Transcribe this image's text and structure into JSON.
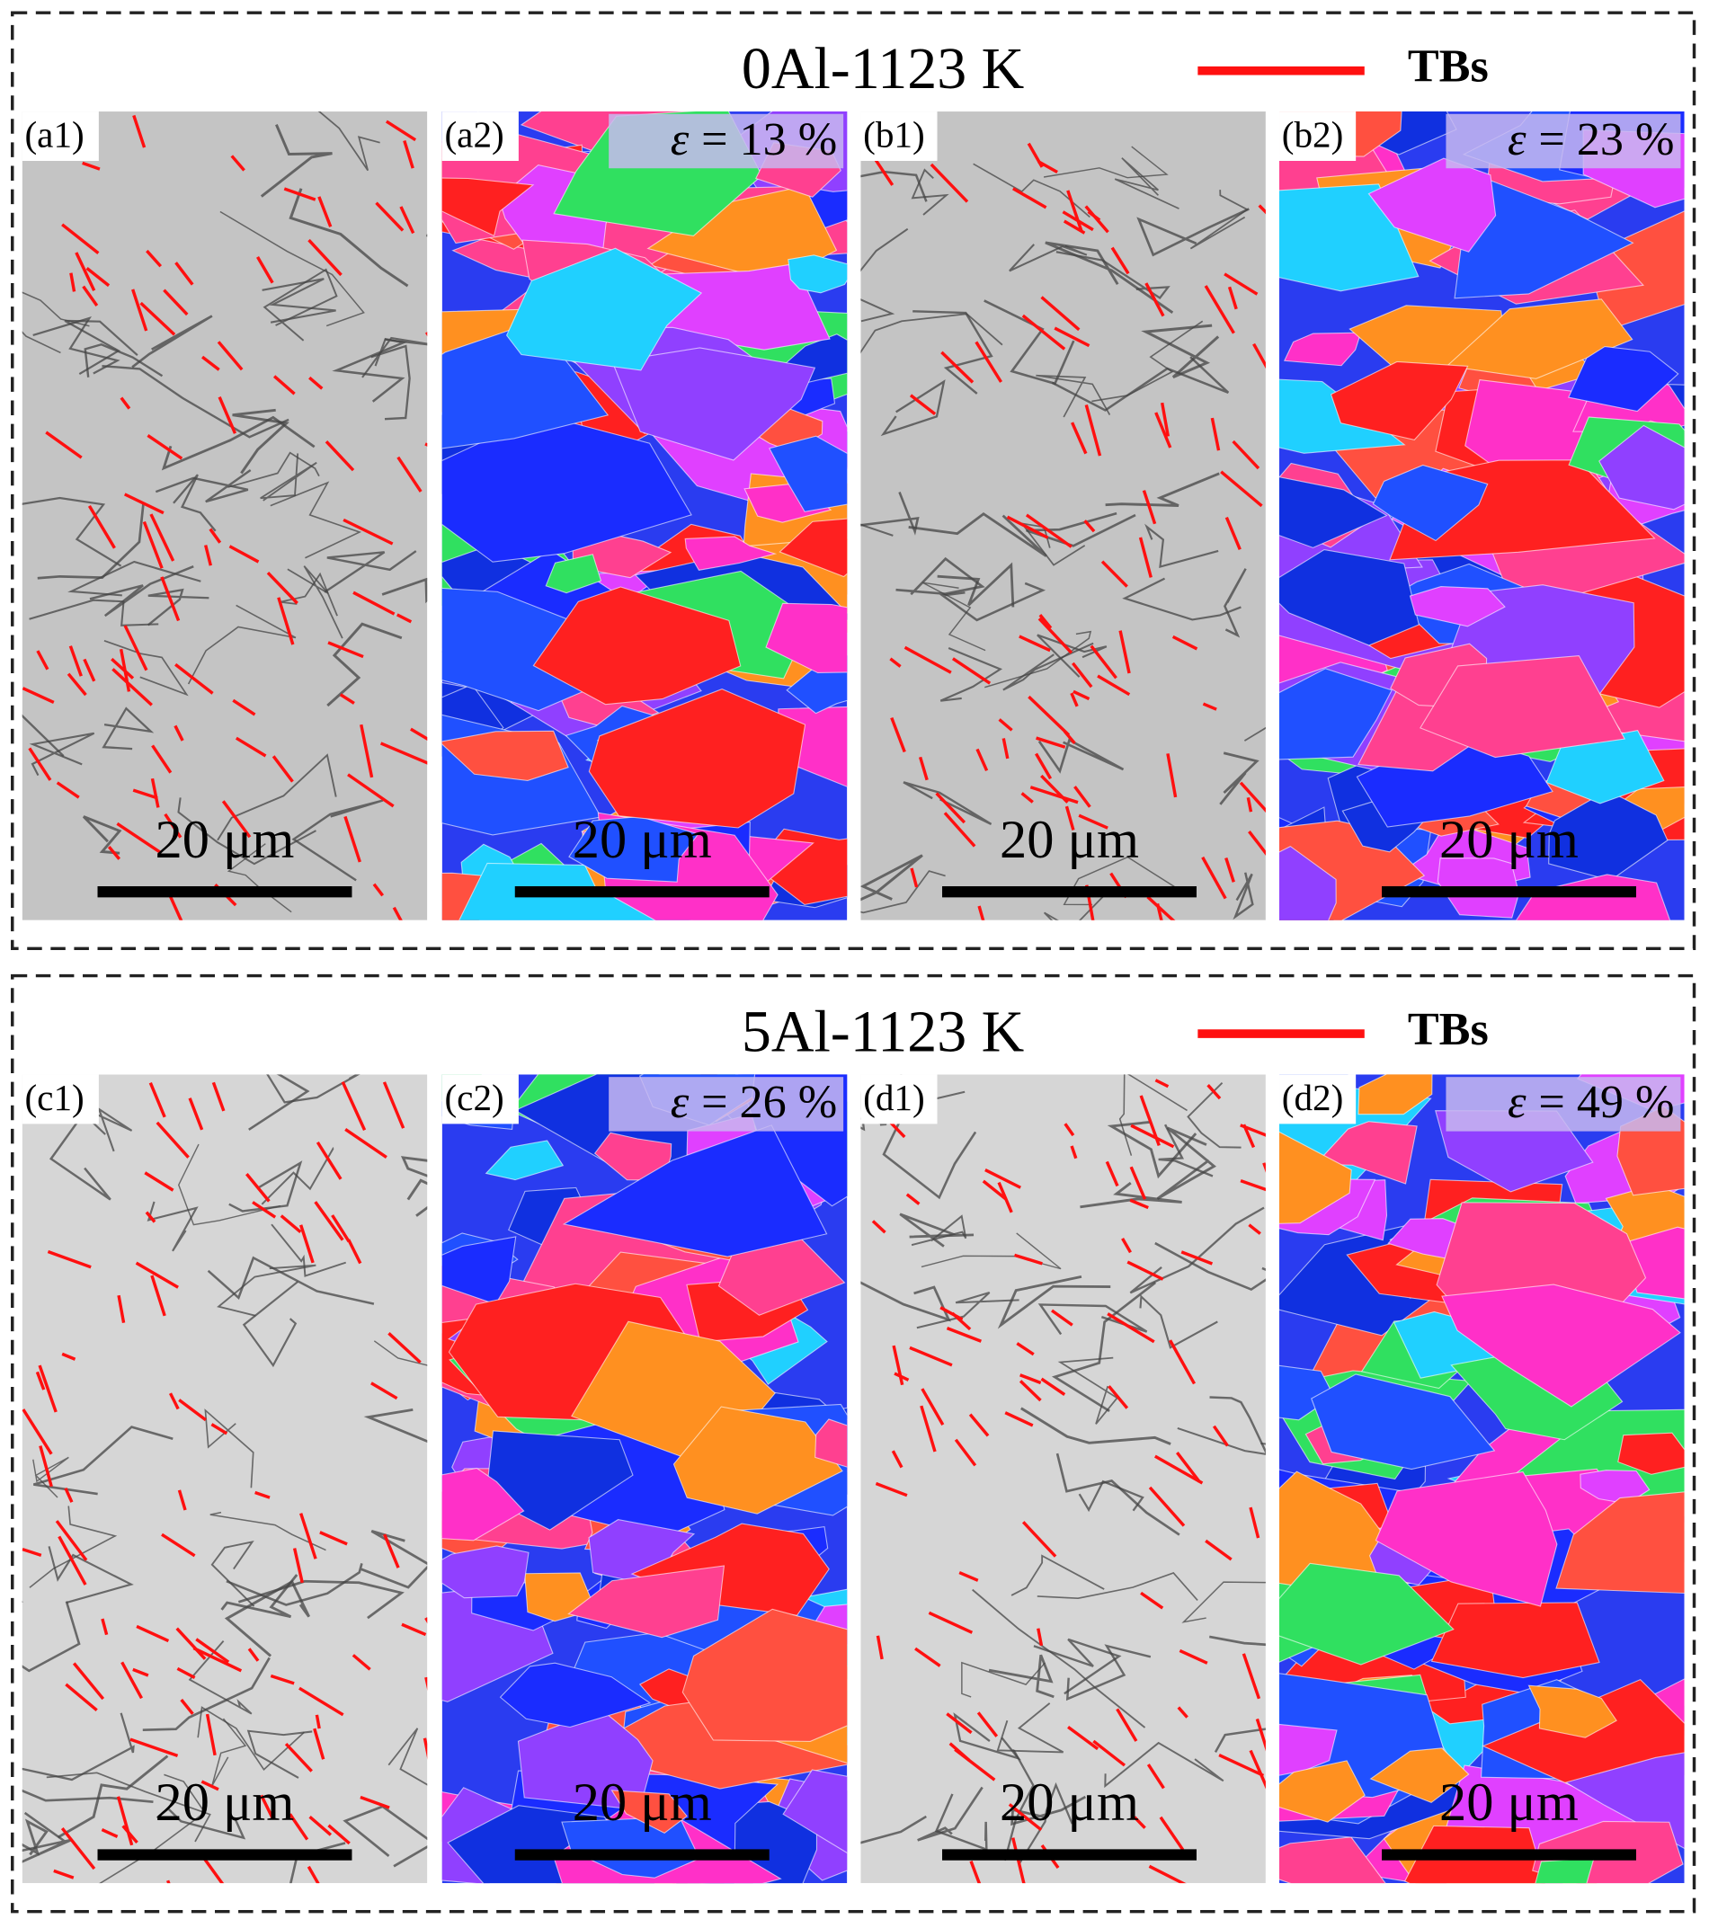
{
  "groups": [
    {
      "title": "0Al-1123 K",
      "legend": "TBs",
      "panels": [
        {
          "label": "(a1)",
          "scale_bar": "20 μm"
        },
        {
          "label": "(a2)",
          "strain": {
            "symbol": "ε",
            "text": "= 13 %"
          },
          "scale_bar": "20 μm"
        },
        {
          "label": "(b1)",
          "scale_bar": "20 μm"
        },
        {
          "label": "(b2)",
          "strain": {
            "symbol": "ε",
            "text": "= 23 %"
          },
          "scale_bar": "20 μm"
        }
      ]
    },
    {
      "title": "5Al-1123 K",
      "legend": "TBs",
      "panels": [
        {
          "label": "(c1)",
          "scale_bar": "20 μm"
        },
        {
          "label": "(c2)",
          "strain": {
            "symbol": "ε",
            "text": "= 26 %"
          },
          "scale_bar": "20 μm"
        },
        {
          "label": "(d1)",
          "scale_bar": "20 μm"
        },
        {
          "label": "(d2)",
          "strain": {
            "symbol": "ε",
            "text": "= 49 %"
          },
          "scale_bar": "20 μm"
        }
      ]
    }
  ]
}
